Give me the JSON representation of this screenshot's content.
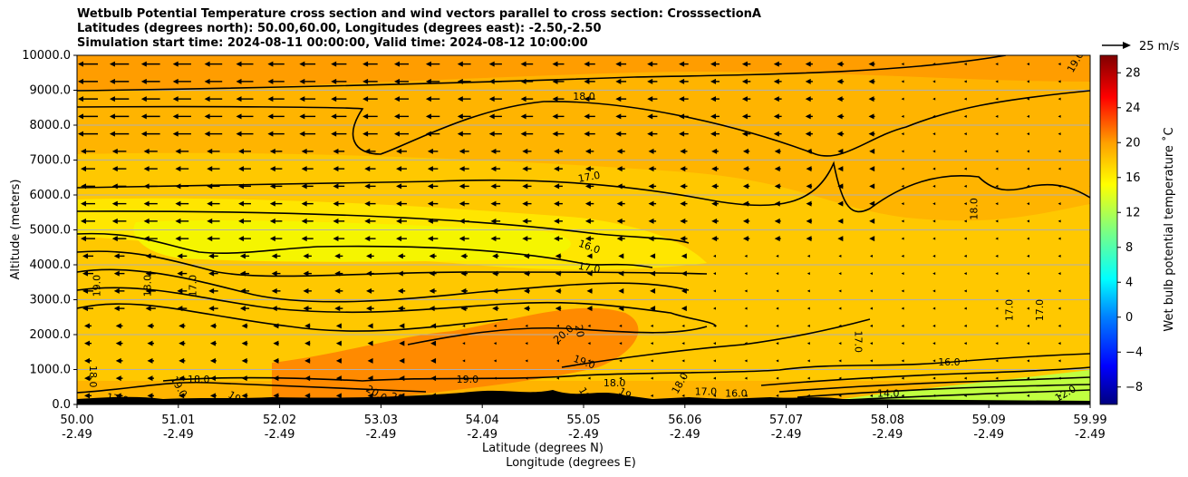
{
  "chart_data": {
    "type": "heatmap",
    "title": [
      "Wetbulb Potential Temperature cross section and wind vectors parallel to cross section: CrosssectionA",
      "Latitudes (degrees north): 50.00,60.00, Longitudes (degrees east): -2.50,-2.50",
      "Simulation start time: 2024-08-11 00:00:00, Valid time: 2024-08-12 10:00:00"
    ],
    "ylabel": "Altitude (meters)",
    "xlabel": "Latitude (degrees N)",
    "xlabel2": "Longitude (degrees E)",
    "ylim": [
      0,
      10000
    ],
    "yticks": [
      "0.0",
      "1000.0",
      "2000.0",
      "3000.0",
      "4000.0",
      "5000.0",
      "6000.0",
      "7000.0",
      "8000.0",
      "9000.0",
      "10000.0"
    ],
    "xticks": [
      {
        "lat": "50.00",
        "lon": "-2.49"
      },
      {
        "lat": "51.01",
        "lon": "-2.49"
      },
      {
        "lat": "52.02",
        "lon": "-2.49"
      },
      {
        "lat": "53.03",
        "lon": "-2.49"
      },
      {
        "lat": "54.04",
        "lon": "-2.49"
      },
      {
        "lat": "55.05",
        "lon": "-2.49"
      },
      {
        "lat": "56.06",
        "lon": "-2.49"
      },
      {
        "lat": "57.07",
        "lon": "-2.49"
      },
      {
        "lat": "58.08",
        "lon": "-2.49"
      },
      {
        "lat": "59.09",
        "lon": "-2.49"
      },
      {
        "lat": "59.99",
        "lon": "-2.49"
      }
    ],
    "xlim": [
      50.0,
      59.99
    ],
    "colorbar": {
      "label": "Wet bulb potential temperature ˚C",
      "ticks": [
        "−8",
        "−4",
        "0",
        "4",
        "8",
        "12",
        "16",
        "20",
        "24",
        "28"
      ],
      "range": [
        -10,
        30
      ]
    },
    "quiver_key": "25 m/s",
    "contour_labels": [
      {
        "text": "19.0",
        "lat": 50.2,
        "alt": 3400,
        "angle": -90
      },
      {
        "text": "18.0",
        "lat": 50.7,
        "alt": 3400,
        "angle": -90
      },
      {
        "text": "17.0",
        "lat": 51.15,
        "alt": 3400,
        "angle": -90
      },
      {
        "text": "18.0",
        "lat": 50.15,
        "alt": 800,
        "angle": 90
      },
      {
        "text": "17.0",
        "lat": 50.4,
        "alt": 150,
        "angle": 10
      },
      {
        "text": "18.0",
        "lat": 51.2,
        "alt": 700,
        "angle": 0
      },
      {
        "text": "19.0",
        "lat": 51.0,
        "alt": 500,
        "angle": 60
      },
      {
        "text": "19",
        "lat": 51.55,
        "alt": 200,
        "angle": 30
      },
      {
        "text": "20.0",
        "lat": 52.95,
        "alt": 300,
        "angle": 30
      },
      {
        "text": "20.0",
        "lat": 53.2,
        "alt": 150,
        "angle": 15
      },
      {
        "text": "19.0",
        "lat": 53.85,
        "alt": 700,
        "angle": 0
      },
      {
        "text": "20.0",
        "lat": 54.8,
        "alt": 2000,
        "angle": -40
      },
      {
        "text": "20",
        "lat": 54.95,
        "alt": 2100,
        "angle": 80
      },
      {
        "text": "19.0",
        "lat": 55.0,
        "alt": 1200,
        "angle": 20
      },
      {
        "text": "18.0",
        "lat": 55.3,
        "alt": 600,
        "angle": 0
      },
      {
        "text": "19",
        "lat": 55.0,
        "alt": 300,
        "angle": 60
      },
      {
        "text": "19",
        "lat": 55.4,
        "alt": 300,
        "angle": 30
      },
      {
        "text": "18.0",
        "lat": 55.95,
        "alt": 600,
        "angle": -60
      },
      {
        "text": "17.0",
        "lat": 56.2,
        "alt": 350,
        "angle": 0
      },
      {
        "text": "16.0",
        "lat": 56.5,
        "alt": 300,
        "angle": 0
      },
      {
        "text": "18.0",
        "lat": 55.0,
        "alt": 8800,
        "angle": 0
      },
      {
        "text": "17.0",
        "lat": 55.05,
        "alt": 6500,
        "angle": -10
      },
      {
        "text": "16.0",
        "lat": 55.05,
        "alt": 4500,
        "angle": 20
      },
      {
        "text": "17.0",
        "lat": 55.05,
        "alt": 3900,
        "angle": 10
      },
      {
        "text": "17.0",
        "lat": 57.7,
        "alt": 1800,
        "angle": 90
      },
      {
        "text": "16.0",
        "lat": 58.6,
        "alt": 1200,
        "angle": 0
      },
      {
        "text": "14.0",
        "lat": 58.0,
        "alt": 300,
        "angle": 0
      },
      {
        "text": "18.0",
        "lat": 58.85,
        "alt": 5600,
        "angle": -90
      },
      {
        "text": "17.0",
        "lat": 59.2,
        "alt": 2700,
        "angle": -90
      },
      {
        "text": "17.0",
        "lat": 59.5,
        "alt": 2700,
        "angle": -90
      },
      {
        "text": "12.0",
        "lat": 59.75,
        "alt": 300,
        "angle": -30
      },
      {
        "text": "19.0",
        "lat": 59.85,
        "alt": 9800,
        "angle": -60
      }
    ]
  }
}
